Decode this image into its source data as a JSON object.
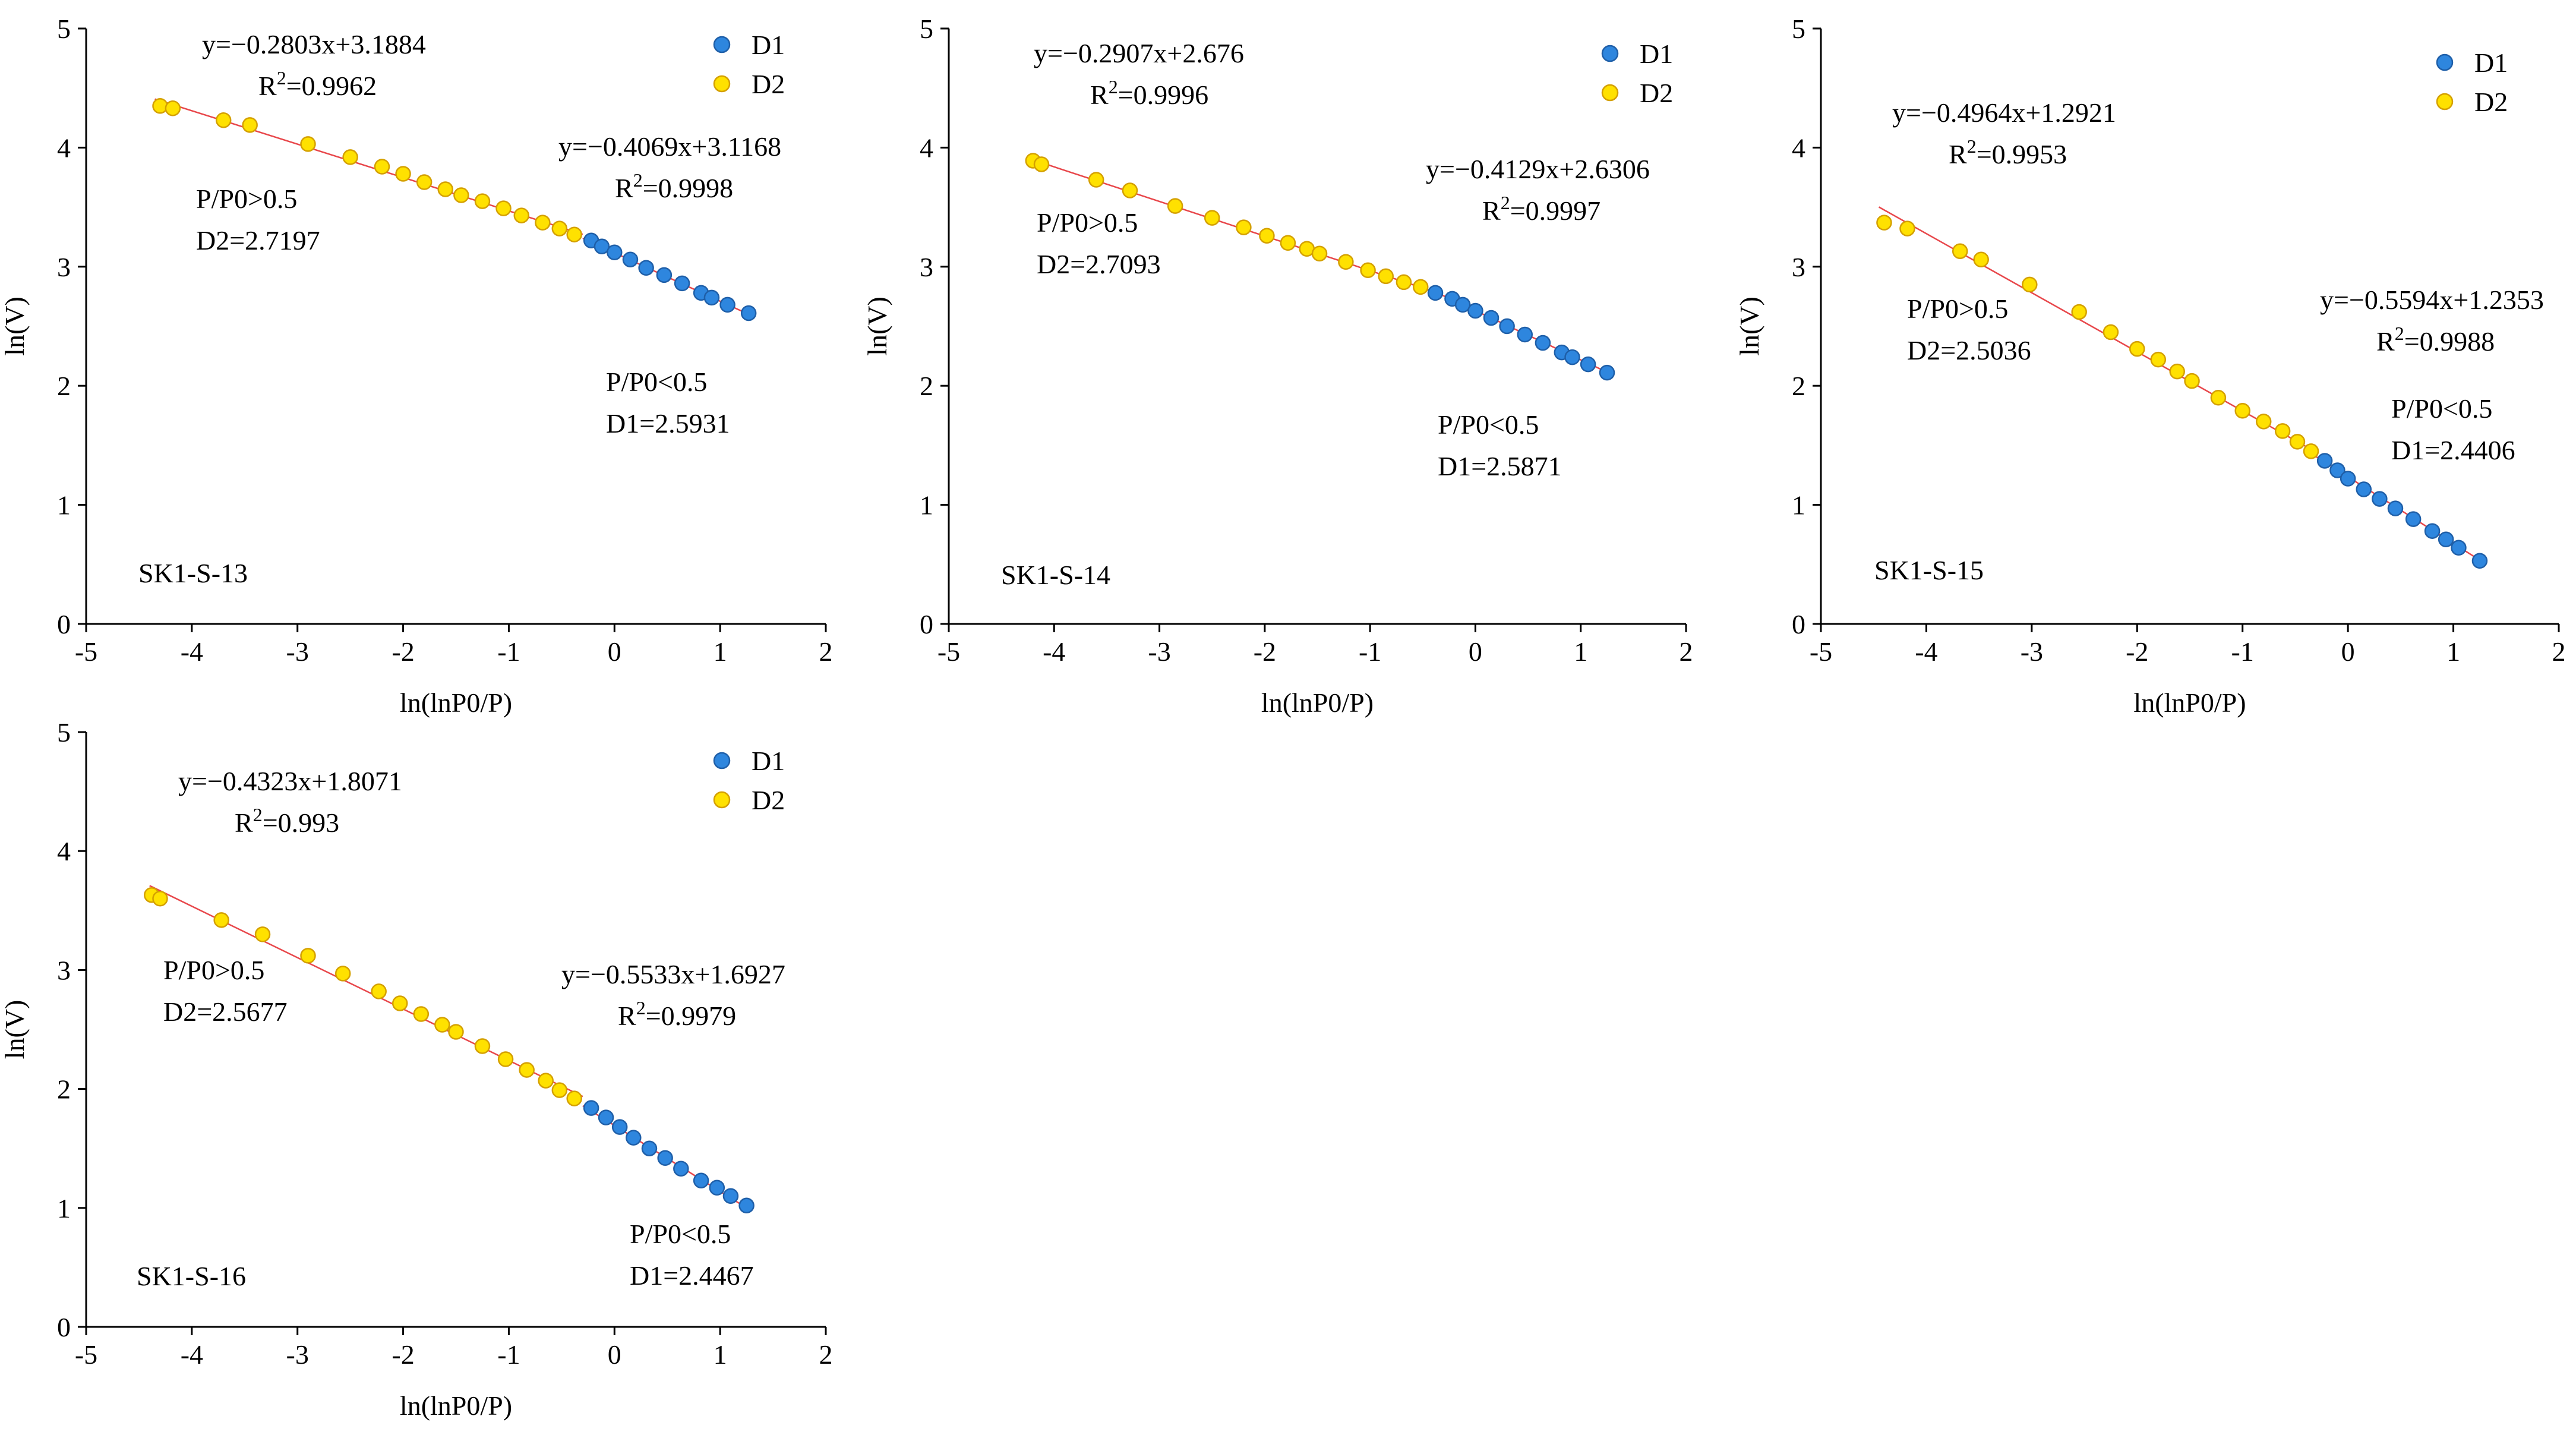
{
  "figure": {
    "colors": {
      "d1": "#2e86de",
      "d1_edge": "#1f5fa8",
      "d2": "#ffe100",
      "d2_edge": "#d4a000",
      "fit": "#e8474b",
      "axis": "#000000"
    }
  },
  "chart_data": [
    {
      "type": "scatter",
      "sample": "SK1-S-13",
      "xlabel": "ln(lnP0/P)",
      "ylabel": "ln(V)",
      "xlim": [
        -5,
        2
      ],
      "ylim": [
        0,
        5
      ],
      "xticks": [
        "-5",
        "-4",
        "-3",
        "-2",
        "-1",
        "0",
        "1",
        "2"
      ],
      "yticks": [
        "0",
        "1",
        "2",
        "3",
        "4",
        "5"
      ],
      "legend": [
        "D1",
        "D2"
      ],
      "series": [
        {
          "name": "D1",
          "x": [
            -0.22,
            -0.12,
            0.0,
            0.15,
            0.3,
            0.47,
            0.64,
            0.82,
            0.92,
            1.07,
            1.27
          ],
          "y": [
            3.22,
            3.17,
            3.12,
            3.06,
            2.99,
            2.93,
            2.86,
            2.78,
            2.74,
            2.68,
            2.61
          ]
        },
        {
          "name": "D2",
          "x": [
            -4.3,
            -4.18,
            -3.7,
            -3.45,
            -2.9,
            -2.5,
            -2.2,
            -2.0,
            -1.8,
            -1.6,
            -1.45,
            -1.25,
            -1.05,
            -0.88,
            -0.68,
            -0.52,
            -0.38
          ],
          "y": [
            4.35,
            4.33,
            4.23,
            4.19,
            4.03,
            3.92,
            3.84,
            3.78,
            3.71,
            3.65,
            3.6,
            3.55,
            3.49,
            3.43,
            3.37,
            3.32,
            3.27
          ]
        }
      ],
      "fits": [
        {
          "equation": "y=−0.2803x+3.1884",
          "r2": "=0.9962",
          "x": [
            -4.35,
            -0.3
          ],
          "y": [
            4.408,
            3.272
          ]
        },
        {
          "equation": "y=−0.4069x+3.1168",
          "r2": "=0.9998",
          "x": [
            -0.3,
            1.3
          ],
          "y": [
            3.239,
            2.588
          ]
        }
      ],
      "annotations": {
        "d2_cond": "P/P0>0.5",
        "d2_val": "D2=2.7197",
        "d1_cond": "P/P0<0.5",
        "d1_val": "D1=2.5931"
      }
    },
    {
      "type": "scatter",
      "sample": "SK1-S-14",
      "xlabel": "ln(lnP0/P)",
      "ylabel": "ln(V)",
      "xlim": [
        -5,
        2
      ],
      "ylim": [
        0,
        5
      ],
      "xticks": [
        "-5",
        "-4",
        "-3",
        "-2",
        "-1",
        "0",
        "1",
        "2"
      ],
      "yticks": [
        "0",
        "1",
        "2",
        "3",
        "4",
        "5"
      ],
      "legend": [
        "D1",
        "D2"
      ],
      "series": [
        {
          "name": "D1",
          "x": [
            -0.38,
            -0.22,
            -0.12,
            0.0,
            0.15,
            0.3,
            0.47,
            0.64,
            0.82,
            0.92,
            1.07,
            1.25
          ],
          "y": [
            2.78,
            2.73,
            2.68,
            2.63,
            2.57,
            2.5,
            2.43,
            2.36,
            2.28,
            2.24,
            2.18,
            2.11
          ]
        },
        {
          "name": "D2",
          "x": [
            -4.2,
            -4.12,
            -3.6,
            -3.28,
            -2.85,
            -2.5,
            -2.2,
            -1.98,
            -1.78,
            -1.6,
            -1.48,
            -1.23,
            -1.02,
            -0.85,
            -0.68,
            -0.52
          ],
          "y": [
            3.89,
            3.86,
            3.73,
            3.64,
            3.51,
            3.41,
            3.33,
            3.26,
            3.2,
            3.15,
            3.11,
            3.04,
            2.97,
            2.92,
            2.87,
            2.83
          ]
        }
      ],
      "fits": [
        {
          "equation": "y=−0.2907x+2.676",
          "r2": "=0.9996",
          "x": [
            -4.25,
            -0.4
          ],
          "y": [
            3.911,
            2.792
          ]
        },
        {
          "equation": "y=−0.4129x+2.6306",
          "r2": "=0.9997",
          "x": [
            -0.4,
            1.28
          ],
          "y": [
            2.796,
            2.102
          ]
        }
      ],
      "annotations": {
        "d2_cond": "P/P0>0.5",
        "d2_val": "D2=2.7093",
        "d1_cond": "P/P0<0.5",
        "d1_val": "D1=2.5871"
      }
    },
    {
      "type": "scatter",
      "sample": "SK1-S-15",
      "xlabel": "ln(lnP0/P)",
      "ylabel": "ln(V)",
      "xlim": [
        -5,
        2
      ],
      "ylim": [
        0,
        5
      ],
      "xticks": [
        "-5",
        "-4",
        "-3",
        "-2",
        "-1",
        "0",
        "1",
        "2"
      ],
      "yticks": [
        "0",
        "1",
        "2",
        "3",
        "4",
        "5"
      ],
      "legend": [
        "D1",
        "D2"
      ],
      "series": [
        {
          "name": "D1",
          "x": [
            -0.22,
            -0.1,
            0.0,
            0.15,
            0.3,
            0.45,
            0.62,
            0.8,
            0.93,
            1.05,
            1.25
          ],
          "y": [
            1.37,
            1.29,
            1.22,
            1.13,
            1.05,
            0.97,
            0.88,
            0.78,
            0.71,
            0.64,
            0.53
          ]
        },
        {
          "name": "D2",
          "x": [
            -4.4,
            -4.18,
            -3.68,
            -3.48,
            -3.02,
            -2.55,
            -2.25,
            -2.0,
            -1.8,
            -1.62,
            -1.48,
            -1.23,
            -1.0,
            -0.8,
            -0.62,
            -0.48,
            -0.35
          ],
          "y": [
            3.37,
            3.32,
            3.13,
            3.06,
            2.85,
            2.62,
            2.45,
            2.31,
            2.22,
            2.12,
            2.04,
            1.9,
            1.79,
            1.7,
            1.62,
            1.53,
            1.45
          ]
        }
      ],
      "fits": [
        {
          "equation": "y=−0.4964x+1.2921",
          "r2": "=0.9953",
          "x": [
            -4.45,
            -0.3
          ],
          "y": [
            3.501,
            1.441
          ]
        },
        {
          "equation": "y=−0.5594x+1.2353",
          "r2": "=0.9988",
          "x": [
            -0.3,
            1.28
          ],
          "y": [
            1.403,
            0.519
          ]
        }
      ],
      "annotations": {
        "d2_cond": "P/P0>0.5",
        "d2_val": "D2=2.5036",
        "d1_cond": "P/P0<0.5",
        "d1_val": "D1=2.4406"
      }
    },
    {
      "type": "scatter",
      "sample": "SK1-S-16",
      "xlabel": "ln(lnP0/P)",
      "ylabel": "ln(V)",
      "xlim": [
        -5,
        2
      ],
      "ylim": [
        0,
        5
      ],
      "xticks": [
        "-5",
        "-4",
        "-3",
        "-2",
        "-1",
        "0",
        "1",
        "2"
      ],
      "yticks": [
        "0",
        "1",
        "2",
        "3",
        "4",
        "5"
      ],
      "legend": [
        "D1",
        "D2"
      ],
      "series": [
        {
          "name": "D1",
          "x": [
            -0.22,
            -0.08,
            0.05,
            0.18,
            0.33,
            0.48,
            0.63,
            0.82,
            0.97,
            1.1,
            1.25
          ],
          "y": [
            1.84,
            1.76,
            1.68,
            1.59,
            1.5,
            1.42,
            1.33,
            1.23,
            1.17,
            1.1,
            1.02
          ]
        },
        {
          "name": "D2",
          "x": [
            -4.38,
            -4.3,
            -3.72,
            -3.33,
            -2.9,
            -2.57,
            -2.23,
            -2.03,
            -1.83,
            -1.63,
            -1.5,
            -1.25,
            -1.03,
            -0.83,
            -0.65,
            -0.52,
            -0.38
          ],
          "y": [
            3.63,
            3.6,
            3.42,
            3.3,
            3.12,
            2.97,
            2.82,
            2.72,
            2.63,
            2.54,
            2.48,
            2.36,
            2.25,
            2.16,
            2.07,
            1.99,
            1.92
          ]
        }
      ],
      "fits": [
        {
          "equation": "y=−0.4323x+1.8071",
          "r2": "=0.993",
          "x": [
            -4.4,
            -0.3
          ],
          "y": [
            3.709,
            1.937
          ]
        },
        {
          "equation": "y=−0.5533x+1.6927",
          "r2": "=0.9979",
          "x": [
            -0.3,
            1.28
          ],
          "y": [
            1.859,
            0.984
          ]
        }
      ],
      "annotations": {
        "d2_cond": "P/P0>0.5",
        "d2_val": "D2=2.5677",
        "d1_cond": "P/P0<0.5",
        "d1_val": "D1=2.4467"
      }
    }
  ]
}
